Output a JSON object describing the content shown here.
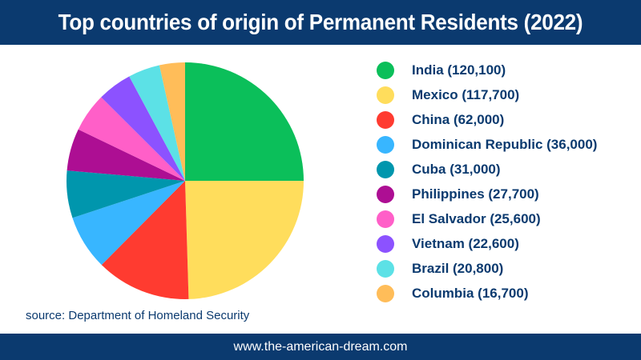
{
  "header": {
    "title": "Top countries of origin of Permanent Residents (2022)"
  },
  "source_note": "source: Department of Homeland Security",
  "footer": {
    "url": "www.the-american-dream.com"
  },
  "colors": {
    "banner": "#0b3a6f",
    "text": "#0b3a6f"
  },
  "chart_data": {
    "type": "pie",
    "title": "Top countries of origin of Permanent Residents (2022)",
    "legend_position": "right",
    "slices": [
      {
        "label": "India (120,100)",
        "value": 120100,
        "color": "#0bbf5a"
      },
      {
        "label": "Mexico (117,700)",
        "value": 117700,
        "color": "#ffdd5c"
      },
      {
        "label": "China (62,000)",
        "value": 62000,
        "color": "#ff3b30"
      },
      {
        "label": "Dominican Republic (36,000)",
        "value": 36000,
        "color": "#38b6ff"
      },
      {
        "label": "Cuba (31,000)",
        "value": 31000,
        "color": "#0096ad"
      },
      {
        "label": "Philippines (27,700)",
        "value": 27700,
        "color": "#ad0e93"
      },
      {
        "label": "El Salvador (25,600)",
        "value": 25600,
        "color": "#ff5fc8"
      },
      {
        "label": "Vietnam (22,600)",
        "value": 22600,
        "color": "#8c52ff"
      },
      {
        "label": "Brazil (20,800)",
        "value": 20800,
        "color": "#5ce1e6"
      },
      {
        "label": "Columbia (16,700)",
        "value": 16700,
        "color": "#ffbd59"
      }
    ]
  }
}
